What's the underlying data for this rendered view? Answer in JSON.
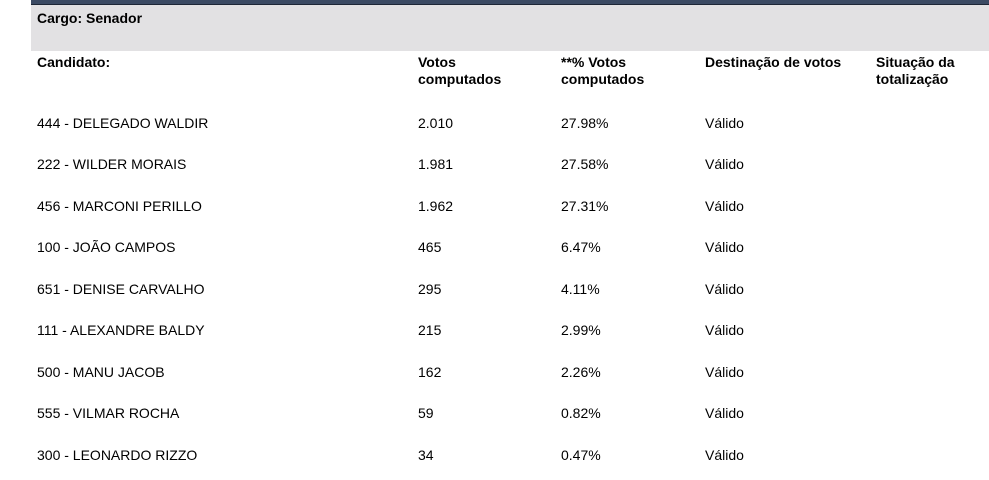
{
  "cargo": {
    "title": "Cargo: Senador"
  },
  "headers": {
    "candidato": "Candidato:",
    "votos_line1": "Votos",
    "votos_line2": "computados",
    "perc_line1": "**% Votos",
    "perc_line2": "computados",
    "destinacao": "Destinação de votos",
    "situacao_line1": "Situação da",
    "situacao_line2": "totalização"
  },
  "rows": [
    {
      "candidato": "444 - DELEGADO WALDIR",
      "votos": "2.010",
      "percentual": "27.98%",
      "destinacao": "Válido",
      "situacao": ""
    },
    {
      "candidato": "222 - WILDER MORAIS",
      "votos": "1.981",
      "percentual": "27.58%",
      "destinacao": "Válido",
      "situacao": ""
    },
    {
      "candidato": "456 - MARCONI PERILLO",
      "votos": "1.962",
      "percentual": "27.31%",
      "destinacao": "Válido",
      "situacao": ""
    },
    {
      "candidato": "100 - JOÃO CAMPOS",
      "votos": "465",
      "percentual": "6.47%",
      "destinacao": "Válido",
      "situacao": ""
    },
    {
      "candidato": "651 - DENISE CARVALHO",
      "votos": "295",
      "percentual": "4.11%",
      "destinacao": "Válido",
      "situacao": ""
    },
    {
      "candidato": "111 - ALEXANDRE BALDY",
      "votos": "215",
      "percentual": "2.99%",
      "destinacao": "Válido",
      "situacao": ""
    },
    {
      "candidato": "500 - MANU JACOB",
      "votos": "162",
      "percentual": "2.26%",
      "destinacao": "Válido",
      "situacao": ""
    },
    {
      "candidato": "555 - VILMAR ROCHA",
      "votos": "59",
      "percentual": "0.82%",
      "destinacao": "Válido",
      "situacao": ""
    },
    {
      "candidato": "300 - LEONARDO RIZZO",
      "votos": "34",
      "percentual": "0.47%",
      "destinacao": "Válido",
      "situacao": ""
    }
  ]
}
